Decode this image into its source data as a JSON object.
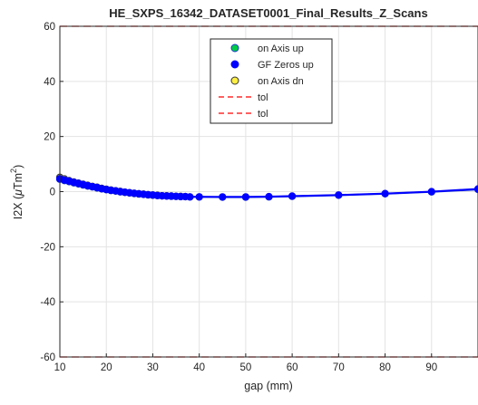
{
  "chart_data": {
    "type": "line",
    "title": "HE_SXPS_16342_DATASET0001_Final_Results_Z_Scans",
    "xlabel": "gap (mm)",
    "ylabel_main": "I2X (",
    "ylabel_mu": "μ",
    "ylabel_unit": "Tm",
    "ylabel_sup": "2",
    "ylabel_close": ")",
    "xlim": [
      10,
      100
    ],
    "ylim": [
      -60,
      60
    ],
    "xticks": [
      10,
      20,
      30,
      40,
      50,
      60,
      70,
      80,
      90
    ],
    "yticks": [
      -60,
      -40,
      -20,
      0,
      20,
      40,
      60
    ],
    "grid": true,
    "legend_position": "top-center",
    "series": [
      {
        "name": "on Axis up",
        "marker": "circle",
        "color": "#00cc44",
        "edge": "#1a3ad0",
        "line": "#1a3ad0",
        "x": [
          10,
          11,
          12,
          13,
          14,
          15,
          16,
          17,
          18,
          19,
          20,
          21,
          22,
          23,
          24,
          25,
          26,
          27,
          28,
          29,
          30,
          31,
          32,
          33,
          34,
          35,
          36,
          37,
          38,
          40,
          45,
          50,
          55,
          60,
          70,
          80,
          90,
          100
        ],
        "y": [
          4.5,
          4.0,
          3.6,
          3.2,
          2.8,
          2.4,
          2.0,
          1.7,
          1.3,
          1.0,
          0.7,
          0.4,
          0.2,
          -0.1,
          -0.3,
          -0.5,
          -0.7,
          -0.9,
          -1.0,
          -1.2,
          -1.3,
          -1.4,
          -1.5,
          -1.6,
          -1.7,
          -1.7,
          -1.8,
          -1.8,
          -1.9,
          -1.9,
          -2.0,
          -2.0,
          -1.9,
          -1.7,
          -1.3,
          -0.8,
          -0.1,
          0.8
        ]
      },
      {
        "name": "GF Zeros up",
        "marker": "circle",
        "color": "#0000ff",
        "edge": "#0000ff",
        "line": "#0000ff",
        "x": [
          10,
          11,
          12,
          13,
          14,
          15,
          16,
          17,
          18,
          19,
          20,
          21,
          22,
          23,
          24,
          25,
          26,
          27,
          28,
          29,
          30,
          31,
          32,
          33,
          34,
          35,
          36,
          37,
          38,
          40,
          45,
          50,
          55,
          60,
          70,
          80,
          90,
          100
        ],
        "y": [
          4.7,
          4.2,
          3.8,
          3.4,
          3.0,
          2.6,
          2.2,
          1.8,
          1.5,
          1.1,
          0.8,
          0.5,
          0.3,
          0.0,
          -0.2,
          -0.4,
          -0.6,
          -0.8,
          -1.0,
          -1.1,
          -1.2,
          -1.4,
          -1.5,
          -1.6,
          -1.6,
          -1.7,
          -1.8,
          -1.8,
          -1.9,
          -1.9,
          -1.9,
          -1.9,
          -1.8,
          -1.6,
          -1.2,
          -0.7,
          0.0,
          1.0
        ]
      },
      {
        "name": "on Axis dn",
        "marker": "circle",
        "color": "#ffee44",
        "edge": "#333333",
        "line": "#1a3ad0",
        "x": [
          10,
          11,
          12,
          13,
          14,
          15,
          16,
          17,
          18,
          19,
          20,
          21,
          22,
          23,
          24,
          25,
          26,
          27,
          28,
          29,
          30,
          31,
          32,
          33,
          34,
          35,
          36,
          37
        ],
        "y": [
          5.2,
          4.6,
          4.0,
          3.5,
          3.1,
          2.7,
          2.3,
          1.9,
          1.6,
          1.2,
          0.9,
          0.6,
          0.3,
          0.1,
          -0.2,
          -0.4,
          -0.6,
          -0.8,
          -0.9,
          -1.1,
          -1.2,
          -1.3,
          -1.5,
          -1.5,
          -1.6,
          -1.7,
          -1.7,
          -1.8
        ]
      }
    ],
    "reference_lines": [
      {
        "name": "tol",
        "y": 60,
        "color": "#ff0000",
        "dash": "dashed"
      },
      {
        "name": "tol",
        "y": -60,
        "color": "#ff0000",
        "dash": "dashed"
      }
    ]
  }
}
